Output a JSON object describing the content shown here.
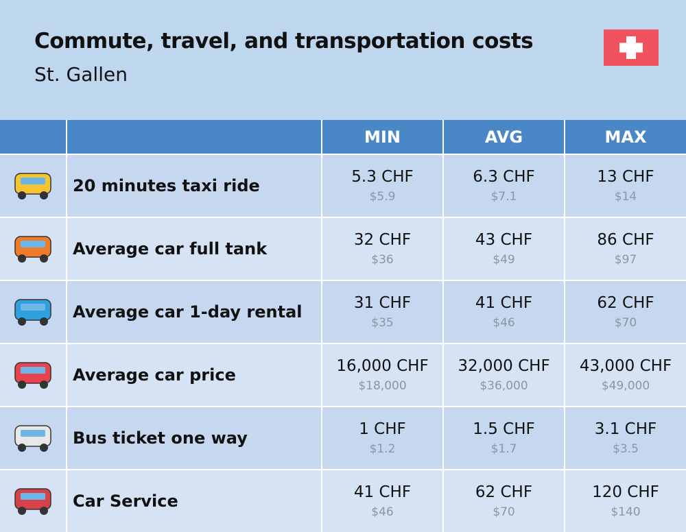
{
  "header": {
    "title": "Commute, travel, and transportation costs",
    "subtitle": "St. Gallen"
  },
  "table": {
    "columns": [
      "MIN",
      "AVG",
      "MAX"
    ],
    "rows": [
      {
        "label": "20 minutes taxi ride",
        "cells": [
          {
            "local": "5.3 CHF",
            "usd": "$5.9"
          },
          {
            "local": "6.3 CHF",
            "usd": "$7.1"
          },
          {
            "local": "13 CHF",
            "usd": "$14"
          }
        ]
      },
      {
        "label": "Average car full tank",
        "cells": [
          {
            "local": "32 CHF",
            "usd": "$36"
          },
          {
            "local": "43 CHF",
            "usd": "$49"
          },
          {
            "local": "86 CHF",
            "usd": "$97"
          }
        ]
      },
      {
        "label": "Average car 1-day rental",
        "cells": [
          {
            "local": "31 CHF",
            "usd": "$35"
          },
          {
            "local": "41 CHF",
            "usd": "$46"
          },
          {
            "local": "62 CHF",
            "usd": "$70"
          }
        ]
      },
      {
        "label": "Average car price",
        "cells": [
          {
            "local": "16,000 CHF",
            "usd": "$18,000"
          },
          {
            "local": "32,000 CHF",
            "usd": "$36,000"
          },
          {
            "local": "43,000 CHF",
            "usd": "$49,000"
          }
        ]
      },
      {
        "label": "Bus ticket one way",
        "cells": [
          {
            "local": "1 CHF",
            "usd": "$1.2"
          },
          {
            "local": "1.5 CHF",
            "usd": "$1.7"
          },
          {
            "local": "3.1 CHF",
            "usd": "$3.5"
          }
        ]
      },
      {
        "label": "Car Service",
        "cells": [
          {
            "local": "41 CHF",
            "usd": "$46"
          },
          {
            "local": "62 CHF",
            "usd": "$70"
          },
          {
            "local": "120 CHF",
            "usd": "$140"
          }
        ]
      }
    ]
  }
}
